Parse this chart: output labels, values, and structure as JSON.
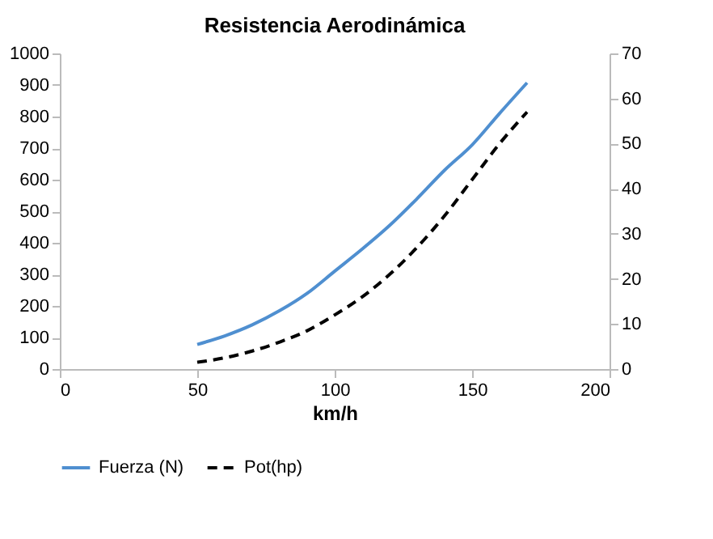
{
  "chart_data": {
    "type": "line",
    "title": "Resistencia Aerodinámica",
    "xlabel": "km/h",
    "x": [
      50,
      60,
      70,
      80,
      90,
      100,
      110,
      120,
      130,
      140,
      150,
      160,
      170
    ],
    "series": [
      {
        "name": "Fuerza (N)",
        "color": "#4f8fd0",
        "line_style": "solid",
        "values": [
          78,
          105,
          140,
          185,
          240,
          310,
          380,
          455,
          540,
          630,
          710,
          810,
          907
        ]
      },
      {
        "name": "Pot(hp)",
        "color": "#000000",
        "line_style": "dashed",
        "axis": "y2",
        "values": [
          1.5,
          2.5,
          4,
          6,
          8.5,
          12,
          16,
          21,
          27,
          34,
          42,
          50,
          57
        ]
      }
    ],
    "xlim": [
      0,
      200
    ],
    "xticks": [
      0,
      50,
      100,
      150,
      200
    ],
    "ylim": [
      0,
      1000
    ],
    "yticks": [
      0,
      100,
      200,
      300,
      400,
      500,
      600,
      700,
      800,
      900,
      1000
    ],
    "y2lim": [
      0,
      70
    ],
    "y2ticks": [
      0,
      10,
      20,
      30,
      40,
      50,
      60,
      70
    ],
    "grid": false,
    "legend": "bottom"
  }
}
